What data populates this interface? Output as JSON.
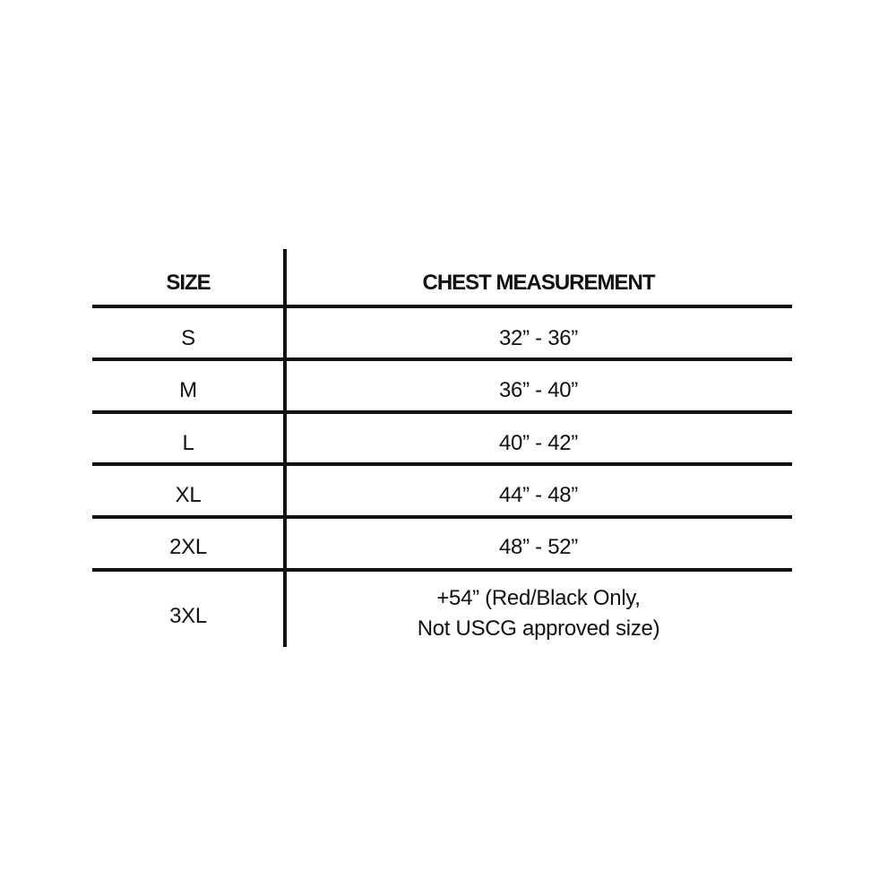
{
  "table": {
    "headers": [
      "SIZE",
      "CHEST MEASUREMENT"
    ],
    "rows": [
      {
        "size": "S",
        "chest": "32” - 36”"
      },
      {
        "size": "M",
        "chest": "36” - 40”"
      },
      {
        "size": "L",
        "chest": "40” - 42”"
      },
      {
        "size": "XL",
        "chest": "44” - 48”"
      },
      {
        "size": "2XL",
        "chest": "48” - 52”"
      },
      {
        "size": "3XL",
        "chest_lines": [
          "+54” (Red/Black Only,",
          "Not USCG approved size)"
        ]
      }
    ]
  },
  "colors": {
    "line": "#111111",
    "background": "#ffffff"
  }
}
